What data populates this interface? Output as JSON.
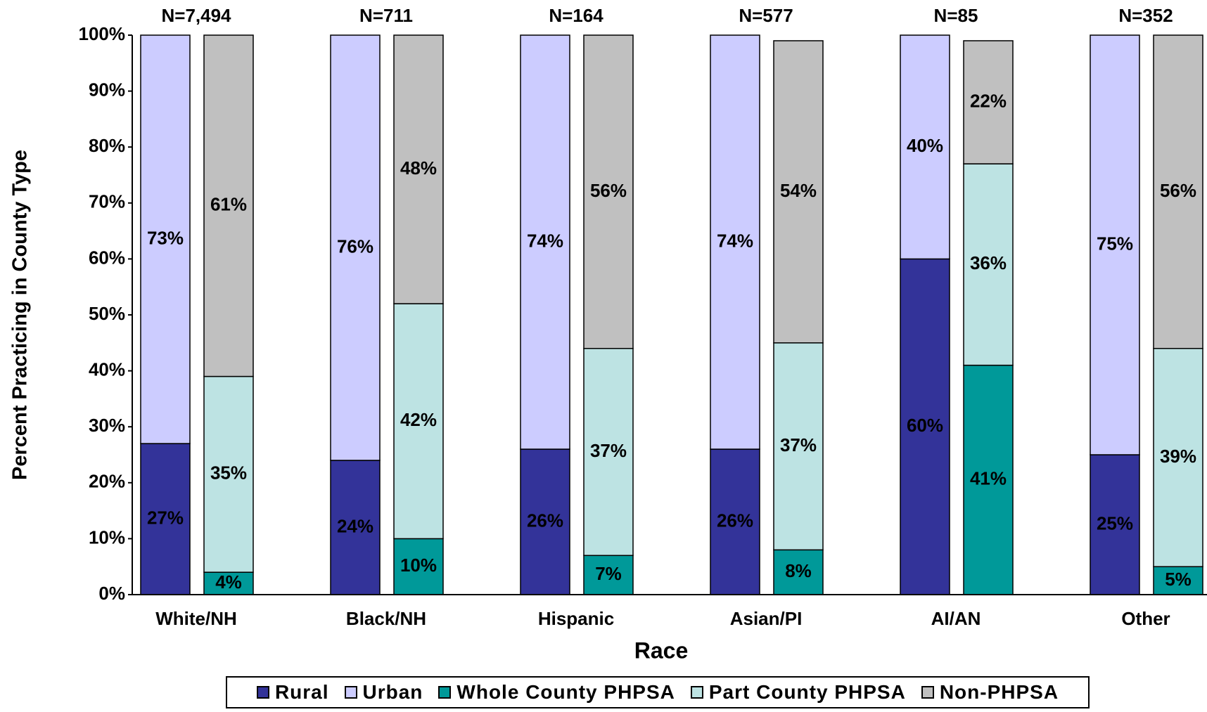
{
  "chart_data": {
    "type": "bar",
    "stacked": true,
    "ylabel": "Percent Practicing in County Type",
    "xlabel": "Race",
    "categories": [
      "White/NH",
      "Black/NH",
      "Hispanic",
      "Asian/PI",
      "AI/AN",
      "Other"
    ],
    "annotations": [
      "N=7,494",
      "N=711",
      "N=164",
      "N=577",
      "N=85",
      "N=352"
    ],
    "ylim": [
      0,
      100
    ],
    "yticks": [
      {
        "value": 0,
        "label": "0%"
      },
      {
        "value": 10,
        "label": "10%"
      },
      {
        "value": 20,
        "label": "20%"
      },
      {
        "value": 30,
        "label": "30%"
      },
      {
        "value": 40,
        "label": "40%"
      },
      {
        "value": 50,
        "label": "50%"
      },
      {
        "value": 60,
        "label": "60%"
      },
      {
        "value": 70,
        "label": "70%"
      },
      {
        "value": 80,
        "label": "80%"
      },
      {
        "value": 90,
        "label": "90%"
      },
      {
        "value": 100,
        "label": "100%"
      }
    ],
    "grid": false,
    "legend": "bottom",
    "groups": [
      {
        "series": [
          {
            "name": "Rural",
            "color": "#333399",
            "values": [
              27,
              24,
              26,
              26,
              60,
              25
            ],
            "value_labels": [
              "27%",
              "24%",
              "26%",
              "26%",
              "60%",
              "25%"
            ]
          },
          {
            "name": "Urban",
            "color": "#ccccff",
            "values": [
              73,
              76,
              74,
              74,
              40,
              75
            ],
            "value_labels": [
              "73%",
              "76%",
              "74%",
              "74%",
              "40%",
              "75%"
            ]
          }
        ]
      },
      {
        "series": [
          {
            "name": "Whole County PHPSA",
            "color": "#009999",
            "values": [
              4,
              10,
              7,
              8,
              41,
              5
            ],
            "value_labels": [
              "4%",
              "10%",
              "7%",
              "8%",
              "41%",
              "5%"
            ]
          },
          {
            "name": "Part County PHPSA",
            "color": "#bde3e3",
            "values": [
              35,
              42,
              37,
              37,
              36,
              39
            ],
            "value_labels": [
              "35%",
              "42%",
              "37%",
              "37%",
              "36%",
              "39%"
            ]
          },
          {
            "name": "Non-PHPSA",
            "color": "#c0c0c0",
            "values": [
              61,
              48,
              56,
              54,
              22,
              56
            ],
            "value_labels": [
              "61%",
              "48%",
              "56%",
              "54%",
              "22%",
              "56%"
            ]
          }
        ]
      }
    ]
  }
}
